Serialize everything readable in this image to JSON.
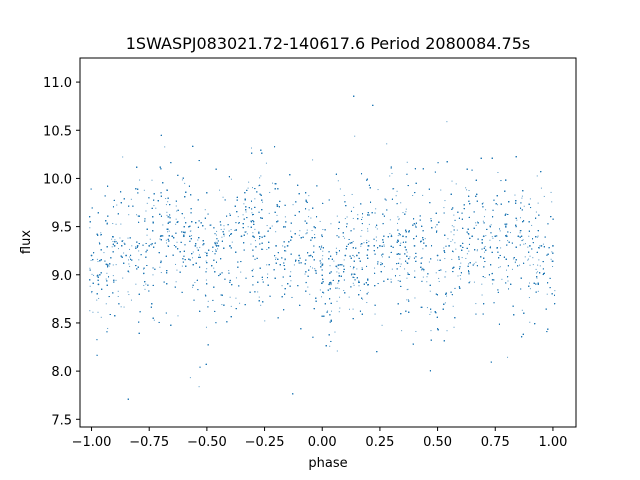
{
  "chart_data": {
    "type": "scatter",
    "title": "1SWASPJ083021.72-140617.6 Period 2080084.75s",
    "xlabel": "phase",
    "ylabel": "flux",
    "xlim": [
      -1.05,
      1.1
    ],
    "ylim": [
      7.42,
      11.25
    ],
    "xticks": [
      -1.0,
      -0.75,
      -0.5,
      -0.25,
      0.0,
      0.25,
      0.5,
      0.75,
      1.0
    ],
    "xtick_labels": [
      "−1.00",
      "−0.75",
      "−0.50",
      "−0.25",
      "0.00",
      "0.25",
      "0.50",
      "0.75",
      "1.00"
    ],
    "yticks": [
      7.5,
      8.0,
      8.5,
      9.0,
      9.5,
      10.0,
      10.5,
      11.0
    ],
    "ytick_labels": [
      "7.5",
      "8.0",
      "8.5",
      "9.0",
      "9.5",
      "10.0",
      "10.5",
      "11.0"
    ],
    "grid": false,
    "legend": "none",
    "point_color": "#1f77b4",
    "series": [
      {
        "x": [
          -1.0,
          -0.97,
          -0.93,
          -0.9,
          -0.85,
          -0.8,
          -0.75,
          -0.7,
          -0.65,
          -0.6,
          -0.55,
          -0.5,
          -0.45,
          -0.4,
          -0.35,
          -0.3,
          -0.25,
          -0.2,
          -0.15,
          -0.1,
          -0.05,
          0.0,
          0.03,
          0.07,
          0.1,
          0.15,
          0.2,
          0.25,
          0.3,
          0.35,
          0.4,
          0.45,
          0.5,
          0.55,
          0.6,
          0.65,
          0.7,
          0.75,
          0.8,
          0.85,
          0.9,
          0.95,
          1.0
        ],
        "y": [
          9.2,
          8.9,
          9.1,
          9.3,
          9.2,
          9.3,
          9.3,
          9.4,
          9.4,
          9.4,
          9.3,
          9.2,
          9.3,
          9.3,
          9.4,
          9.4,
          9.4,
          9.3,
          9.3,
          9.2,
          9.2,
          9.1,
          8.9,
          9.1,
          9.2,
          9.2,
          9.3,
          9.3,
          9.4,
          9.4,
          9.3,
          9.3,
          9.2,
          9.3,
          9.3,
          9.4,
          9.4,
          9.4,
          9.4,
          9.4,
          9.3,
          9.3,
          9.3
        ]
      }
    ]
  }
}
